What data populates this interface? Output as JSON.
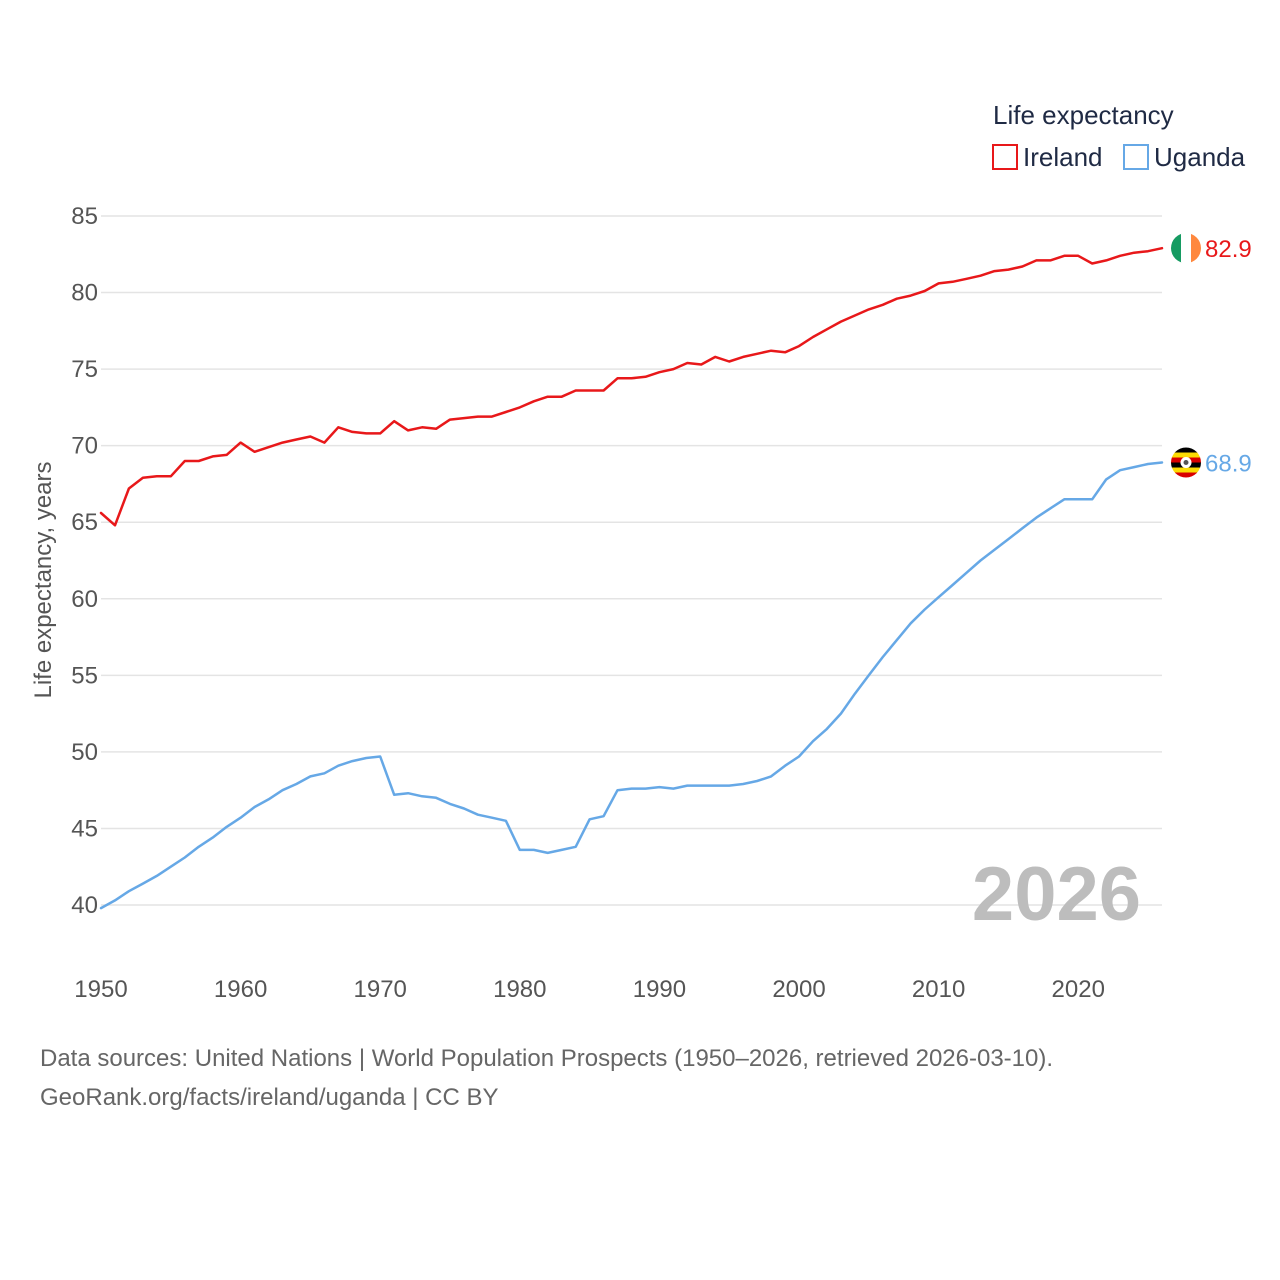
{
  "chart_data": {
    "type": "line",
    "title": "",
    "legend_title": "Life expectancy",
    "ylabel": "Life expectancy, years",
    "xlabel": "",
    "xlim": [
      1950,
      2026
    ],
    "ylim": [
      40,
      85
    ],
    "x_ticks": [
      1950,
      1960,
      1970,
      1980,
      1990,
      2000,
      2010,
      2020
    ],
    "y_ticks": [
      40,
      45,
      50,
      55,
      60,
      65,
      70,
      75,
      80,
      85
    ],
    "grid": true,
    "legend_position": "top-right",
    "year_label": "2026",
    "x": [
      1950,
      1951,
      1952,
      1953,
      1954,
      1955,
      1956,
      1957,
      1958,
      1959,
      1960,
      1961,
      1962,
      1963,
      1964,
      1965,
      1966,
      1967,
      1968,
      1969,
      1970,
      1971,
      1972,
      1973,
      1974,
      1975,
      1976,
      1977,
      1978,
      1979,
      1980,
      1981,
      1982,
      1983,
      1984,
      1985,
      1986,
      1987,
      1988,
      1989,
      1990,
      1991,
      1992,
      1993,
      1994,
      1995,
      1996,
      1997,
      1998,
      1999,
      2000,
      2001,
      2002,
      2003,
      2004,
      2005,
      2006,
      2007,
      2008,
      2009,
      2010,
      2011,
      2012,
      2013,
      2014,
      2015,
      2016,
      2017,
      2018,
      2019,
      2020,
      2021,
      2022,
      2023,
      2024,
      2025,
      2026
    ],
    "series": [
      {
        "name": "Ireland",
        "color": "#e8181a",
        "end_label": "82.9",
        "flag": "ireland",
        "values": [
          65.6,
          64.8,
          67.2,
          67.9,
          68.0,
          68.0,
          69.0,
          69.0,
          69.3,
          69.4,
          70.2,
          69.6,
          69.9,
          70.2,
          70.4,
          70.6,
          70.2,
          71.2,
          70.9,
          70.8,
          70.8,
          71.6,
          71.0,
          71.2,
          71.1,
          71.7,
          71.8,
          71.9,
          71.9,
          72.2,
          72.5,
          72.9,
          73.2,
          73.2,
          73.6,
          73.6,
          73.6,
          74.4,
          74.4,
          74.5,
          74.8,
          75.0,
          75.4,
          75.3,
          75.8,
          75.5,
          75.8,
          76.0,
          76.2,
          76.1,
          76.5,
          77.1,
          77.6,
          78.1,
          78.5,
          78.9,
          79.2,
          79.6,
          79.8,
          80.1,
          80.6,
          80.7,
          80.9,
          81.1,
          81.4,
          81.5,
          81.7,
          82.1,
          82.1,
          82.4,
          82.4,
          81.9,
          82.1,
          82.4,
          82.6,
          82.7,
          82.9
        ]
      },
      {
        "name": "Uganda",
        "color": "#66a8e6",
        "end_label": "68.9",
        "flag": "uganda",
        "values": [
          39.8,
          40.3,
          40.9,
          41.4,
          41.9,
          42.5,
          43.1,
          43.8,
          44.4,
          45.1,
          45.7,
          46.4,
          46.9,
          47.5,
          47.9,
          48.4,
          48.6,
          49.1,
          49.4,
          49.6,
          49.7,
          47.2,
          47.3,
          47.1,
          47.0,
          46.6,
          46.3,
          45.9,
          45.7,
          45.5,
          43.6,
          43.6,
          43.4,
          43.6,
          43.8,
          45.6,
          45.8,
          47.5,
          47.6,
          47.6,
          47.7,
          47.6,
          47.8,
          47.8,
          47.8,
          47.8,
          47.9,
          48.1,
          48.4,
          49.1,
          49.7,
          50.7,
          51.5,
          52.5,
          53.8,
          55.0,
          56.2,
          57.3,
          58.4,
          59.3,
          60.1,
          60.9,
          61.7,
          62.5,
          63.2,
          63.9,
          64.6,
          65.3,
          65.9,
          66.5,
          66.5,
          66.5,
          67.8,
          68.4,
          68.6,
          68.8,
          68.9
        ]
      }
    ]
  },
  "footer": {
    "line1": "Data sources: United Nations | World Population Prospects (1950–2026, retrieved 2026-03-10).",
    "line2": "GeoRank.org/facts/ireland/uganda | CC BY"
  }
}
